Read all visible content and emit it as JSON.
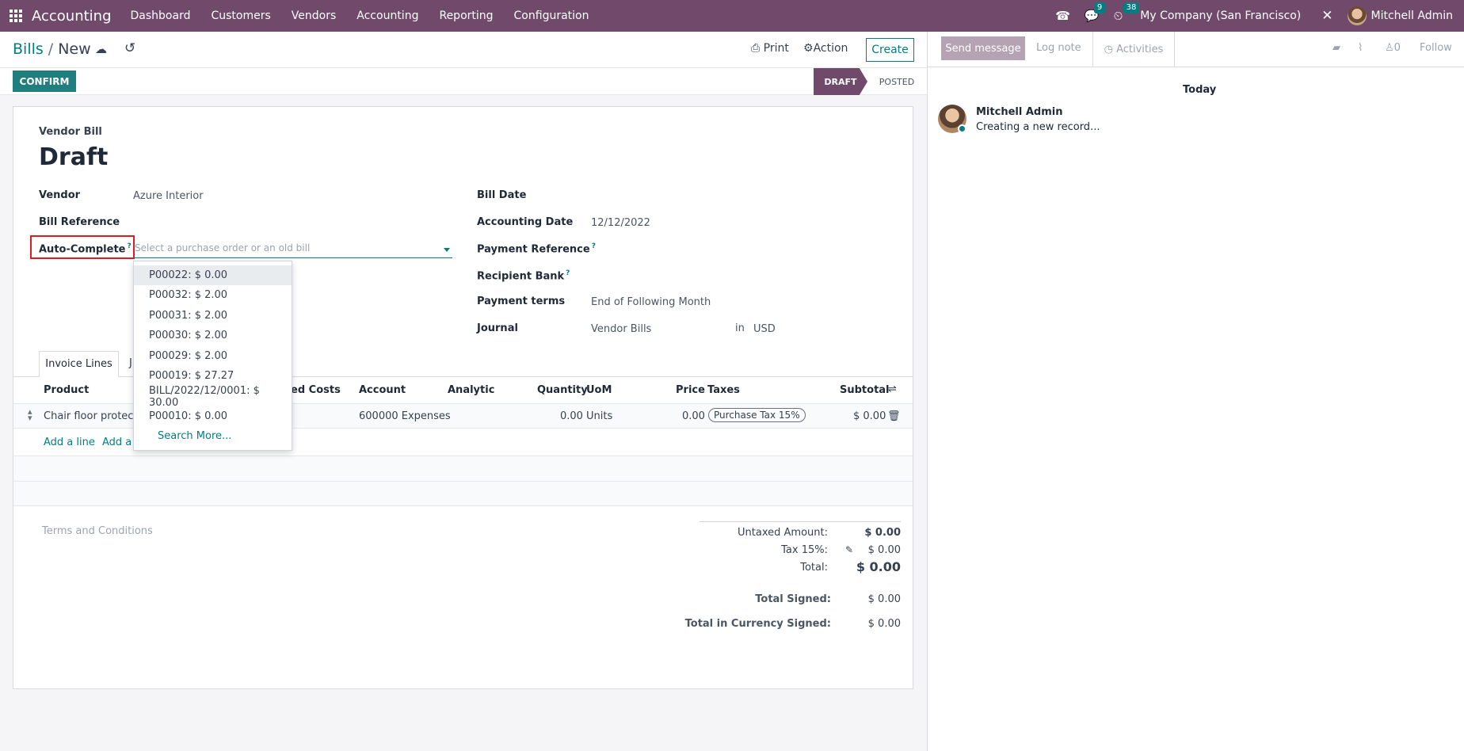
{
  "navbar": {
    "brand": "Accounting",
    "menu": [
      "Dashboard",
      "Customers",
      "Vendors",
      "Accounting",
      "Reporting",
      "Configuration"
    ],
    "messages_badge": "9",
    "activities_badge": "38",
    "company": "My Company (San Francisco)",
    "user": "Mitchell Admin"
  },
  "control": {
    "breadcrumb_parent": "Bills",
    "breadcrumb_sep": "/",
    "breadcrumb_current": "New",
    "print_label": "Print",
    "action_label": "Action",
    "create_label": "Create"
  },
  "statusbar": {
    "confirm_label": "CONFIRM",
    "stages": [
      "DRAFT",
      "POSTED"
    ]
  },
  "form": {
    "doc_type": "Vendor Bill",
    "doc_name": "Draft",
    "vendor_label": "Vendor",
    "vendor_value": "Azure Interior",
    "bill_ref_label": "Bill Reference",
    "autocomplete_label": "Auto-Complete",
    "autocomplete_placeholder": "Select a purchase order or an old bill",
    "bill_date_label": "Bill Date",
    "accounting_date_label": "Accounting Date",
    "accounting_date_value": "12/12/2022",
    "payment_ref_label": "Payment Reference",
    "recipient_bank_label": "Recipient Bank",
    "payment_terms_label": "Payment terms",
    "payment_terms_value": "End of Following Month",
    "journal_label": "Journal",
    "journal_value": "Vendor Bills",
    "journal_in": "in",
    "currency": "USD",
    "help_mark": "?"
  },
  "tabs": {
    "active": "Invoice Lines",
    "other_fragment": "J"
  },
  "lines": {
    "headers": {
      "product": "Product",
      "landed_fragment": "ed Costs",
      "account": "Account",
      "analytic": "Analytic",
      "quantity": "Quantity",
      "uom": "UoM",
      "price": "Price",
      "taxes": "Taxes",
      "subtotal": "Subtotal"
    },
    "row": {
      "product": "Chair floor protecti",
      "account": "600000 Expenses",
      "quantity": "0.00",
      "uom": "Units",
      "price": "0.00",
      "tax": "Purchase Tax 15%",
      "subtotal": "$ 0.00"
    },
    "add_line": "Add a line",
    "add_section_fragment": "Add a s"
  },
  "dropdown": {
    "items": [
      "P00022: $ 0.00",
      "P00032: $ 2.00",
      "P00031: $ 2.00",
      "P00030: $ 2.00",
      "P00029: $ 2.00",
      "P00019: $ 27.27",
      "BILL/2022/12/0001: $ 30.00",
      "P00010: $ 0.00"
    ],
    "search_more": "Search More..."
  },
  "totals": {
    "terms_placeholder": "Terms and Conditions",
    "untaxed_label": "Untaxed Amount:",
    "untaxed_value": "$ 0.00",
    "tax_label": "Tax 15%:",
    "tax_value": "$ 0.00",
    "total_label": "Total:",
    "total_value": "$ 0.00",
    "total_signed_label": "Total Signed:",
    "total_signed_value": "$ 0.00",
    "total_currency_label": "Total in Currency Signed:",
    "total_currency_value": "$ 0.00"
  },
  "chatter": {
    "send_message": "Send message",
    "log_note": "Log note",
    "activities": "Activities",
    "followers_count": "0",
    "follow": "Follow",
    "day_separator": "Today",
    "author": "Mitchell Admin",
    "message": "Creating a new record..."
  },
  "colors": {
    "navbar": "#71496b",
    "primary": "#017e84",
    "confirm": "#1f7f7f",
    "highlight_box": "#e01b24"
  }
}
